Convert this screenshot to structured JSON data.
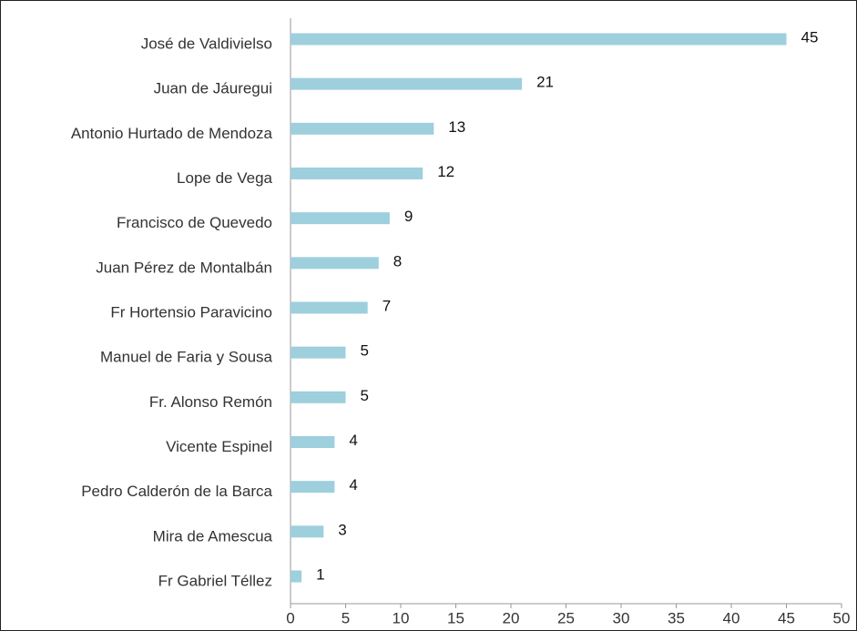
{
  "chart_data": {
    "type": "hbar",
    "categories": [
      "José de Valdivielso",
      "Juan de Jáuregui",
      "Antonio Hurtado de Mendoza",
      "Lope de Vega",
      "Francisco de Quevedo",
      "Juan Pérez de Montalbán",
      "Fr Hortensio Paravicino",
      "Manuel de Faria y Sousa",
      "Fr. Alonso Remón",
      "Vicente Espinel",
      "Pedro Calderón de la Barca",
      "Mira de Amescua",
      "Fr Gabriel Téllez"
    ],
    "values": [
      45,
      21,
      13,
      12,
      9,
      8,
      7,
      5,
      5,
      4,
      4,
      3,
      1
    ],
    "color": "#9ecfdc",
    "xlim": [
      0,
      50
    ],
    "xticks": [
      0,
      5,
      10,
      15,
      20,
      25,
      30,
      35,
      40,
      45,
      50
    ]
  }
}
